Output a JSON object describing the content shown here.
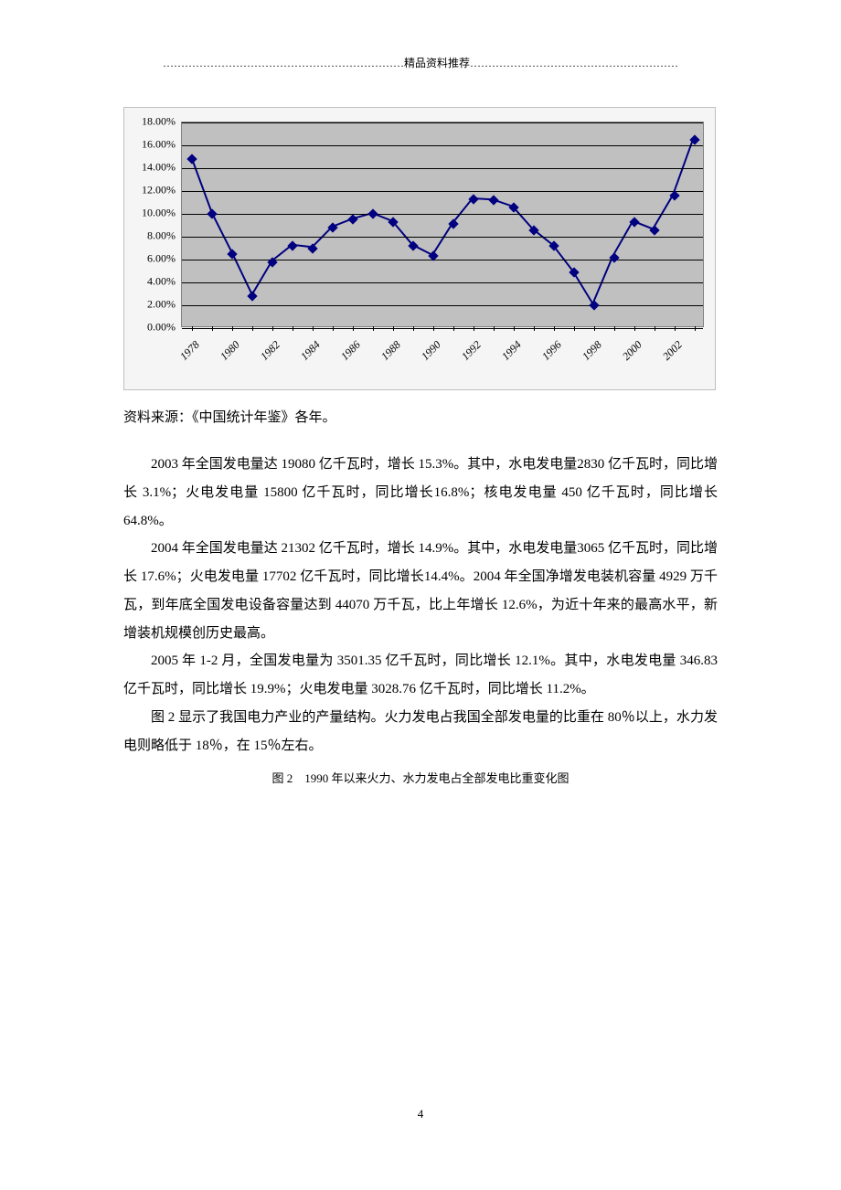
{
  "header": {
    "text": "…………………………………………………………精品资料推荐…………………………………………………"
  },
  "chart": {
    "type": "line",
    "background_color": "#f5f5f5",
    "plot_bg_color": "#c0c0c0",
    "grid_color": "#000000",
    "line_color": "#000080",
    "marker_color": "#000080",
    "marker_shape": "diamond",
    "marker_size": 8,
    "line_width": 2,
    "y_axis": {
      "min": 0,
      "max": 18,
      "step": 2,
      "labels": [
        "0.00%",
        "2.00%",
        "4.00%",
        "6.00%",
        "8.00%",
        "10.00%",
        "12.00%",
        "14.00%",
        "16.00%",
        "18.00%"
      ],
      "fontsize": 12
    },
    "x_axis": {
      "years_all": [
        "1978",
        "1979",
        "1980",
        "1981",
        "1982",
        "1983",
        "1984",
        "1985",
        "1986",
        "1987",
        "1988",
        "1989",
        "1990",
        "1991",
        "1992",
        "1993",
        "1994",
        "1995",
        "1996",
        "1997",
        "1998",
        "1999",
        "2000",
        "2001",
        "2002",
        "2003"
      ],
      "labels_shown": [
        "1978",
        "1980",
        "1982",
        "1984",
        "1986",
        "1988",
        "1990",
        "1992",
        "1994",
        "1996",
        "1998",
        "2000",
        "2002"
      ],
      "fontsize": 12,
      "rotation": -45
    },
    "values": [
      14.8,
      10.0,
      6.5,
      2.8,
      5.8,
      7.2,
      7.0,
      8.8,
      9.5,
      10.0,
      9.3,
      7.2,
      6.3,
      9.1,
      11.3,
      11.2,
      10.6,
      8.6,
      7.2,
      4.9,
      2.0,
      6.2,
      9.3,
      8.6,
      11.6,
      16.5
    ]
  },
  "source": {
    "text": "资料来源：《中国统计年鉴》各年。"
  },
  "paragraphs": {
    "p1": "2003 年全国发电量达 19080 亿千瓦时，增长 15.3%。其中，水电发电量2830 亿千瓦时，同比增长 3.1%；火电发电量 15800 亿千瓦时，同比增长16.8%；核电发电量 450 亿千瓦时，同比增长 64.8%。",
    "p2": "2004 年全国发电量达 21302 亿千瓦时，增长 14.9%。其中，水电发电量3065 亿千瓦时，同比增长 17.6%；火电发电量 17702 亿千瓦时，同比增长14.4%。2004 年全国净增发电装机容量 4929 万千瓦，到年底全国发电设备容量达到 44070 万千瓦，比上年增长 12.6%，为近十年来的最高水平，新增装机规模创历史最高。",
    "p3": "2005 年 1-2 月，全国发电量为 3501.35 亿千瓦时，同比增长 12.1%。其中，水电发电量 346.83 亿千瓦时，同比增长 19.9%；火电发电量 3028.76 亿千瓦时，同比增长 11.2%。",
    "p4": "图 2 显示了我国电力产业的产量结构。火力发电占我国全部发电量的比重在 80％以上，水力发电则略低于 18％，在 15％左右。"
  },
  "caption": {
    "text": "图 2　1990 年以来火力、水力发电占全部发电比重变化图"
  },
  "page_number": "4"
}
